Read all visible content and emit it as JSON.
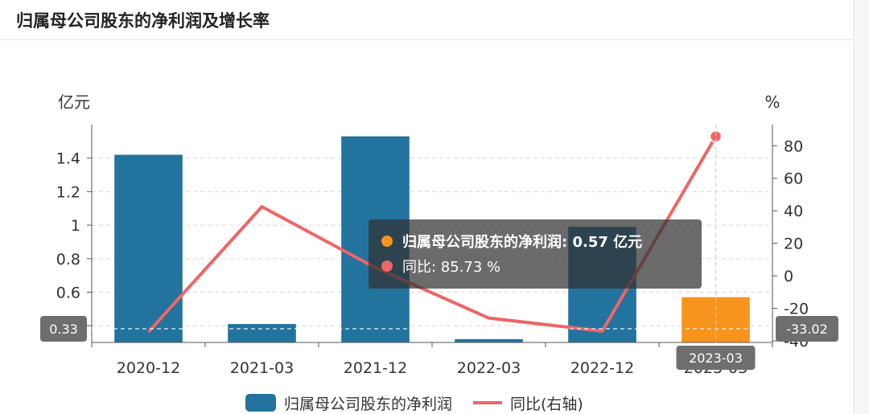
{
  "title": "归属母公司股东的净利润及增长率",
  "colors": {
    "bar": "#22739e",
    "bar_highlight": "#f7941d",
    "line": "#ee6666",
    "axis_pointer_label": "#6e6e6e"
  },
  "chart_data": {
    "type": "bar",
    "categories": [
      "2020-12",
      "2021-03",
      "2021-12",
      "2022-03",
      "2022-12",
      "2023-03"
    ],
    "series": [
      {
        "name": "归属母公司股东的净利润",
        "type": "bar",
        "axis": "left",
        "values": [
          1.42,
          0.41,
          1.53,
          0.32,
          0.99,
          0.57
        ]
      },
      {
        "name": "同比(右轴)",
        "type": "line",
        "axis": "right",
        "values": [
          -34.5,
          42.5,
          5.0,
          -26.0,
          -34.0,
          85.73
        ]
      }
    ],
    "left_axis": {
      "unit": "亿元",
      "ticks": [
        "0.4",
        "0.6",
        "0.8",
        "1",
        "1.2",
        "1.4"
      ],
      "ylim": [
        0.3,
        1.6
      ]
    },
    "right_axis": {
      "unit": "%",
      "ticks": [
        "-40",
        "-20",
        "0",
        "20",
        "40",
        "60",
        "80"
      ],
      "ylim": [
        -41,
        93
      ]
    },
    "highlight_index": 5,
    "axis_pointer": {
      "left_value_label": "0.33",
      "right_value_label": "-33.02",
      "x_label": "2023-03"
    },
    "grid": true,
    "legend_position": "bottom"
  },
  "tooltip": {
    "row1_label": "归属母公司股东的净利润: 0.57  亿元",
    "row2_label": "同比: 85.73  %"
  },
  "legend": {
    "bar_label": "归属母公司股东的净利润",
    "line_label": "同比(右轴)"
  }
}
